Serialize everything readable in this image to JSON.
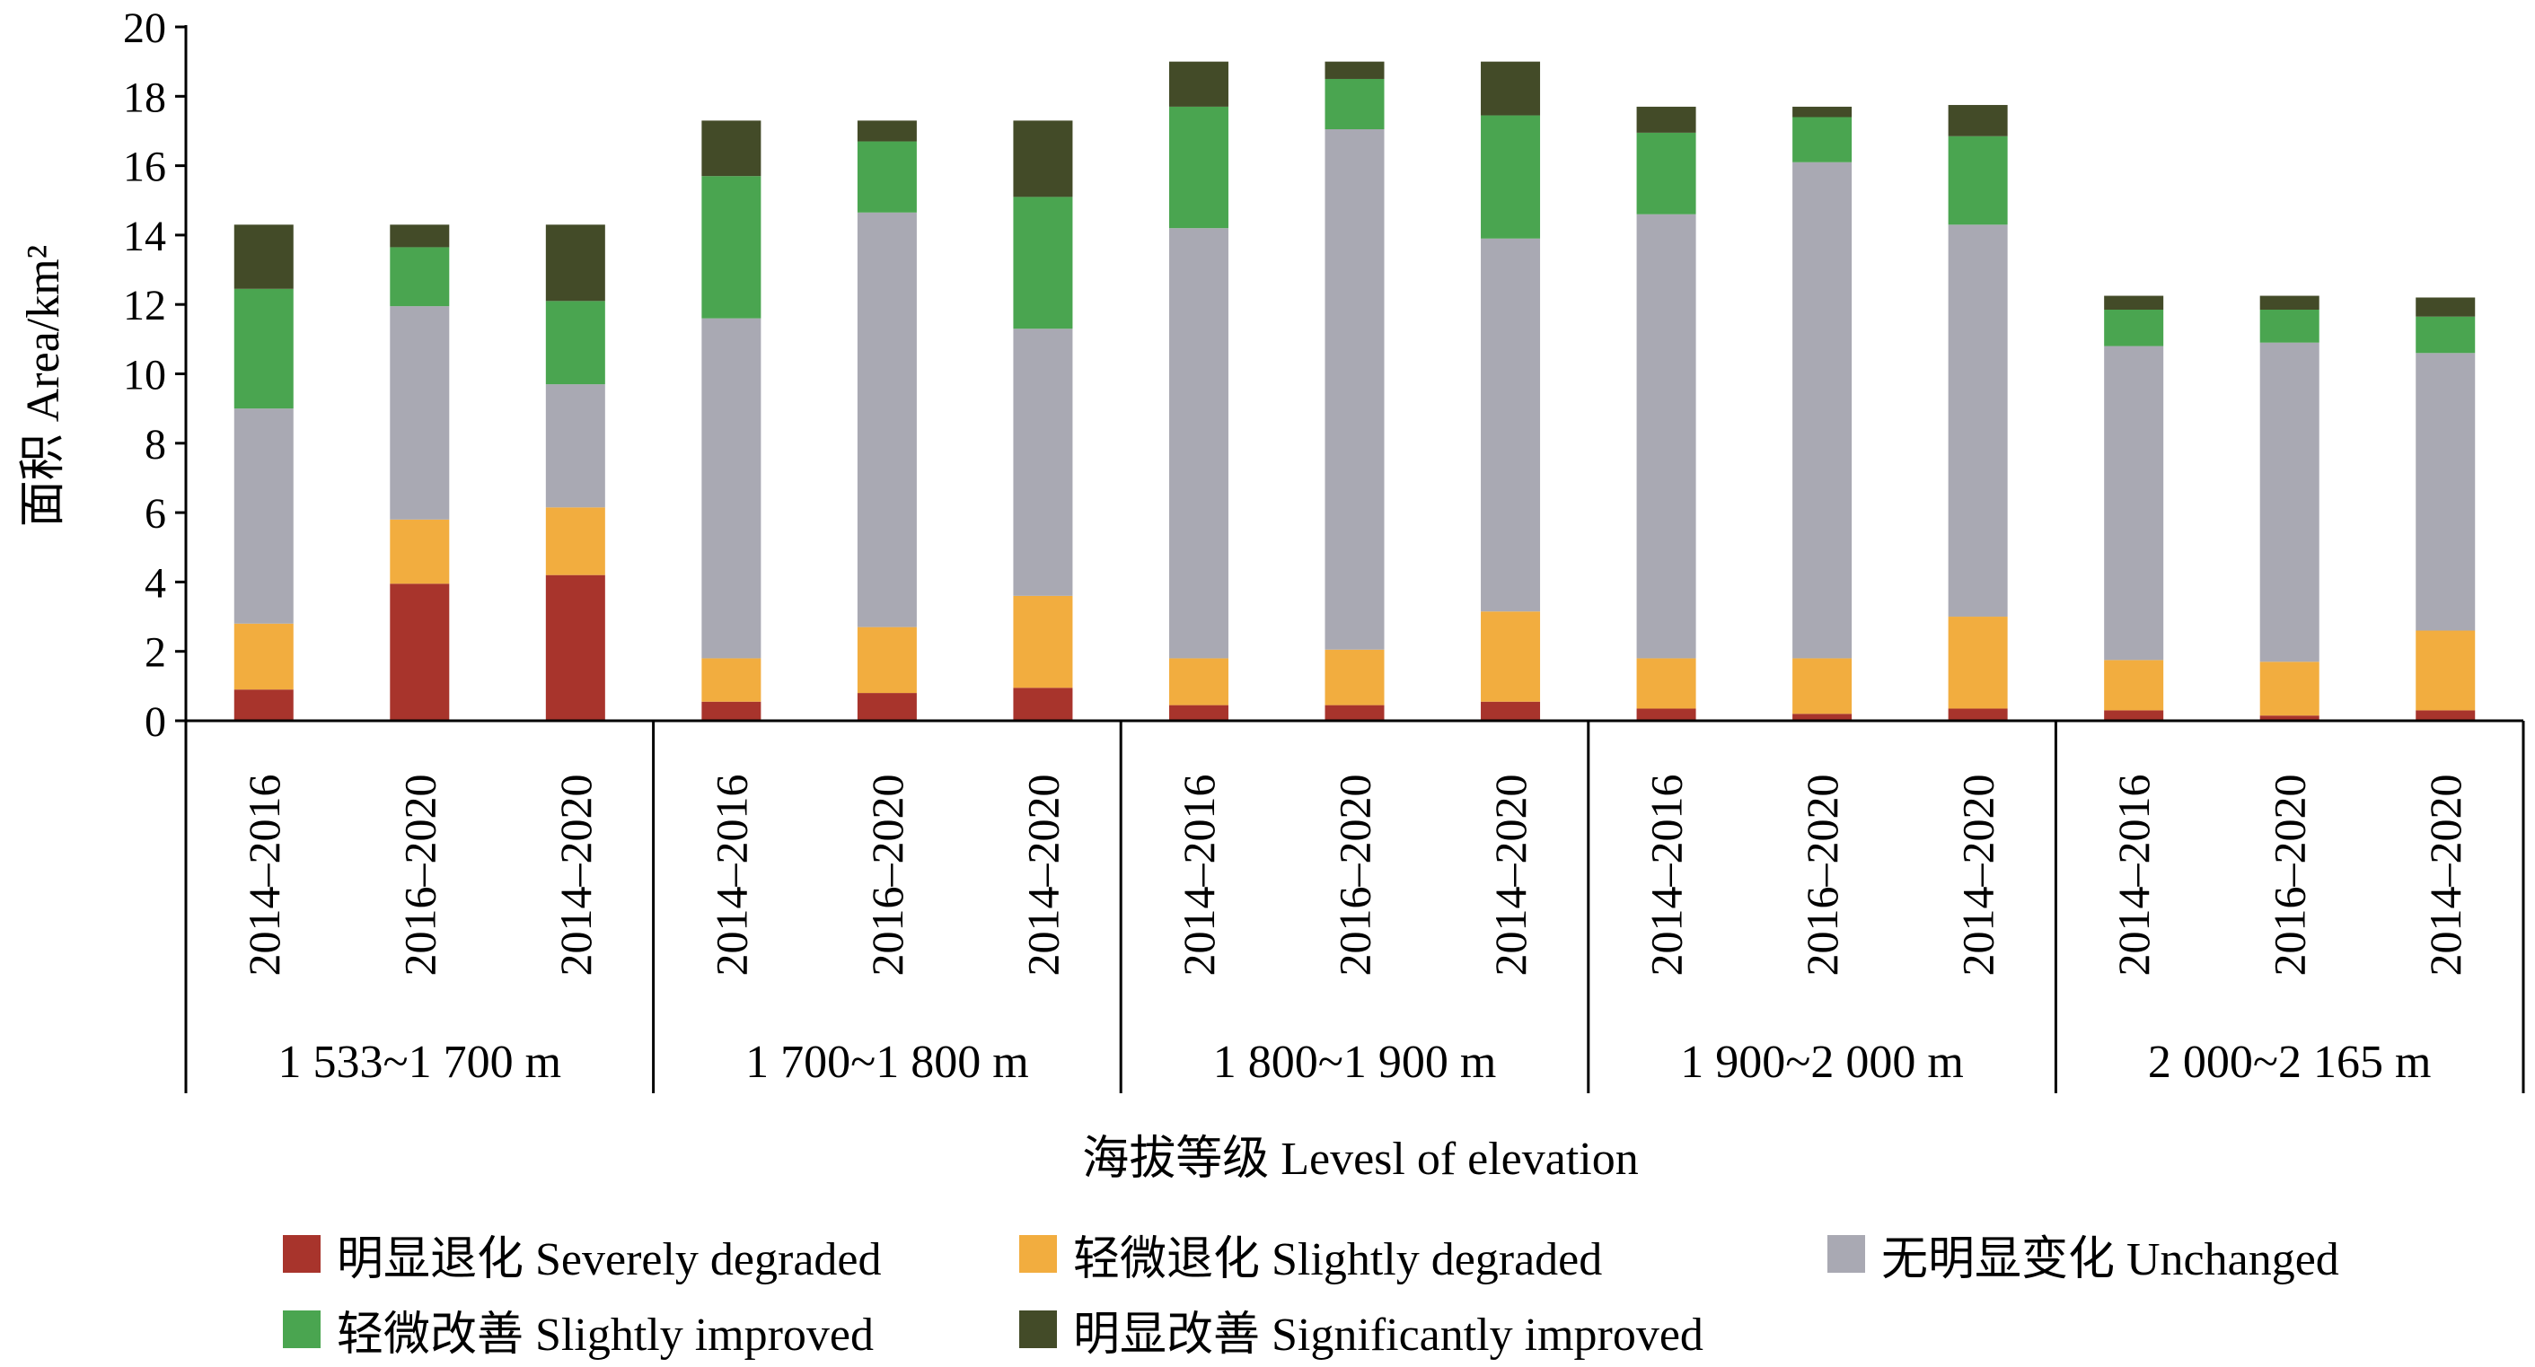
{
  "chart_data": {
    "type": "bar",
    "stacked": true,
    "ylabel": "面积  Area/km²",
    "xlabel": "海拔等级  Levesl of elevation",
    "ylim": [
      0,
      20
    ],
    "yticks": [
      0,
      2,
      4,
      6,
      8,
      10,
      12,
      14,
      16,
      18,
      20
    ],
    "grid": false,
    "legend_position": "bottom",
    "groups": [
      {
        "label": "1 533~1 700 m",
        "categories": [
          "2014–2016",
          "2016–2020",
          "2014–2020"
        ]
      },
      {
        "label": "1 700~1 800 m",
        "categories": [
          "2014–2016",
          "2016–2020",
          "2014–2020"
        ]
      },
      {
        "label": "1 800~1 900 m",
        "categories": [
          "2014–2016",
          "2016–2020",
          "2014–2020"
        ]
      },
      {
        "label": "1 900~2 000 m",
        "categories": [
          "2014–2016",
          "2016–2020",
          "2014–2020"
        ]
      },
      {
        "label": "2 000~2 165 m",
        "categories": [
          "2014–2016",
          "2016–2020",
          "2014–2020"
        ]
      }
    ],
    "series": [
      {
        "name": "明显退化  Severely degraded",
        "color": "#a8342c",
        "values": [
          0.9,
          3.95,
          4.2,
          0.55,
          0.8,
          0.95,
          0.45,
          0.45,
          0.55,
          0.35,
          0.2,
          0.35,
          0.3,
          0.15,
          0.3
        ]
      },
      {
        "name": "轻微退化  Slightly degraded",
        "color": "#f2ad3f",
        "values": [
          1.9,
          1.85,
          1.95,
          1.25,
          1.9,
          2.65,
          1.35,
          1.6,
          2.6,
          1.45,
          1.6,
          2.65,
          1.45,
          1.55,
          2.3
        ]
      },
      {
        "name": "无明显变化  Unchanged",
        "color": "#a9a9b3",
        "values": [
          6.2,
          6.15,
          3.55,
          9.8,
          11.95,
          7.7,
          12.4,
          15.0,
          10.75,
          12.8,
          14.3,
          11.3,
          9.05,
          9.2,
          8.0
        ]
      },
      {
        "name": "轻微改善  Slightly improved",
        "color": "#4aa550",
        "values": [
          3.45,
          1.7,
          2.4,
          4.1,
          2.05,
          3.8,
          3.5,
          1.45,
          3.55,
          2.35,
          1.3,
          2.55,
          1.05,
          0.95,
          1.05
        ]
      },
      {
        "name": "明显改善  Significantly improved",
        "color": "#434b28",
        "values": [
          1.85,
          0.65,
          2.2,
          1.6,
          0.6,
          2.2,
          1.3,
          0.5,
          1.55,
          0.75,
          0.3,
          0.9,
          0.4,
          0.4,
          0.55
        ]
      }
    ]
  }
}
